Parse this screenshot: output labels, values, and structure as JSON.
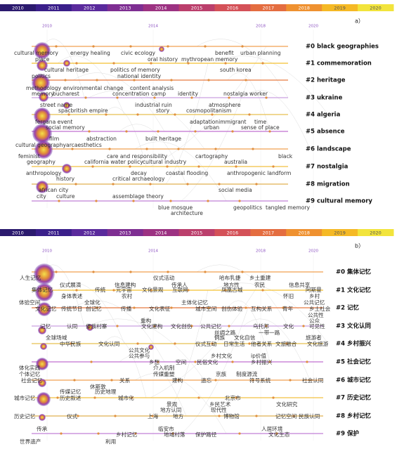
{
  "panels": [
    {
      "label": "a）",
      "year_bar": [
        2010,
        2011,
        2012,
        2013,
        2014,
        2015,
        2016,
        2017,
        2018,
        2019,
        2020
      ],
      "timeline_years": [
        2010,
        2014,
        2018,
        2020
      ],
      "clusters": [
        "#0 black geographies",
        "#1 commemoration",
        "#2 heritage",
        "#3 ukraine",
        "#4 algeria",
        "#5 absence",
        "#6 landscape",
        "#7 nostalgia",
        "#8 migration",
        "#9 cultural memory"
      ],
      "keywords": [
        "cultural memory",
        "energy healing",
        "civic ecology",
        "benefit",
        "urban planning",
        "place",
        "oral history",
        "mythropean memory",
        "cultural heritage",
        "politics of memory",
        "south korea",
        "politics",
        "national identity",
        "methodology",
        "environmental change",
        "content analysis",
        "memory",
        "bucharest",
        "concentration camp",
        "identity",
        "nostalgia worker",
        "street name",
        "atmosphere",
        "spacbritish empire",
        "industrial ruin",
        "story",
        "cosmopolitanism",
        "fergana event",
        "adaptationimmigrant",
        "time",
        "social memory",
        "urban",
        "sense of place",
        "film",
        "abstraction",
        "built heritage",
        "cultural geographyarcaesthetics",
        "feminist",
        "care and responsibility",
        "cartography",
        "black",
        "geography",
        "california water policy",
        "cultural industry",
        "australia",
        "anthropology",
        "decay",
        "coastal flooding",
        "anthropogenic landform",
        "history",
        "critical archaeology",
        "african city",
        "social media",
        "city",
        "culture",
        "assemblage theory",
        "blue mosque",
        "geopolitics",
        "tangled memory",
        "architecture"
      ]
    },
    {
      "label": "b）",
      "year_bar": [
        2010,
        2011,
        2012,
        2013,
        2014,
        2015,
        2016,
        2017,
        2018,
        2019,
        2020
      ],
      "timeline_years": [
        2010,
        2014,
        2018,
        2020
      ],
      "clusters": [
        "#0 集体记忆",
        "#1 文化记忆",
        "#2 记忆",
        "#3 文化认同",
        "#4 乡村振兴",
        "#5 社会记忆",
        "#6 城市记忆",
        "#7 历史记忆",
        "#8 乡村记忆",
        "#9 保护"
      ],
      "keywords": [
        "人生记忆",
        "仪式活动",
        "哈布乳捷",
        "乡土重建",
        "仪式展演",
        "信息建构",
        "传承人",
        "地方性",
        "农民",
        "信息共享",
        "集体记忆",
        "传统",
        "元宇宙",
        "文化景观",
        "互联网",
        "凤凰古城",
        "阿斯曼",
        "身体表述",
        "农村",
        "怀旧",
        "乡村",
        "体验空间",
        "全球化",
        "主体化记忆",
        "公共记忆",
        "文化记忆",
        "传统节日",
        "创记忆",
        "传播",
        "文化表征",
        "城市空间",
        "创伤体验",
        "互构关系",
        "青年",
        "乡土社会",
        "公共性",
        "公众",
        "记忆",
        "认同",
        "傣族村寨",
        "重构",
        "文化建构",
        "文化创伤",
        "公共记忆",
        "乌托邦",
        "文化",
        "可见性",
        "丝绸之路",
        "一带一路",
        "全球场域",
        "侗族",
        "文化自信",
        "旅游者",
        "中华民族",
        "文化认同",
        "仪式互动",
        "日常生活",
        "他者关系",
        "文旅融合",
        "文化旅游",
        "公共文化",
        "乡村文化",
        "ip价值",
        "公共参与",
        "乡愁",
        "空间",
        "民俗文化",
        "乡村振兴",
        "体化实践",
        "个体记忆",
        "介入机制",
        "传媒重塑",
        "京族",
        "制度源流",
        "社会记忆",
        "关系",
        "建构",
        "遗忘",
        "符号系统",
        "社会认同",
        "休斯敦",
        "传媒记忆",
        "历史地理",
        "城市记忆",
        "历史叙述",
        "城市化",
        "北京市",
        "景观",
        "乡民艺术",
        "文化研究",
        "地方认同",
        "现代性",
        "历史记忆",
        "仪式",
        "上海",
        "地方",
        "博物馆",
        "记忆空间",
        "民族认同",
        "传承",
        "临安市",
        "人居环境",
        "乡村记忆",
        "地域村落",
        "保护路径",
        "文化生态",
        "世界遗产",
        "利用"
      ]
    }
  ]
}
